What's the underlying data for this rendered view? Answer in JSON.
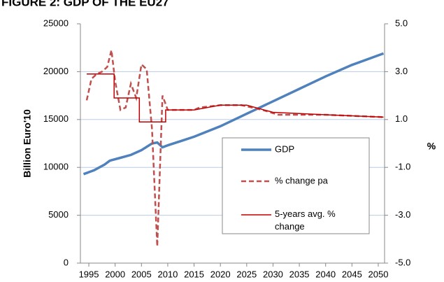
{
  "chart_data": {
    "type": "line",
    "title": "FIGURE 2: GDP OF THE EU27",
    "y_label": "Billion Euro'10",
    "y2_label": "%",
    "xlim": [
      1993.4,
      2051.2
    ],
    "xticks": [
      1995,
      2000,
      2005,
      2010,
      2015,
      2020,
      2025,
      2030,
      2035,
      2040,
      2045,
      2050
    ],
    "ylim": [
      0,
      25000
    ],
    "yticks": [
      0,
      5000,
      10000,
      15000,
      20000,
      25000
    ],
    "y2lim": [
      -5,
      5
    ],
    "y2ticks": [
      {
        "value": -5,
        "label": "-5.0"
      },
      {
        "value": -3,
        "label": "-3.0"
      },
      {
        "value": -1,
        "label": "-1.0"
      },
      {
        "value": 1,
        "label": "1.0"
      },
      {
        "value": 3,
        "label": "3.0"
      },
      {
        "value": 5,
        "label": "5.0"
      }
    ],
    "grid": true,
    "series": [
      {
        "name": "GDP",
        "color": "#4f81bd",
        "dash": "solid",
        "width": 3.5,
        "x": [
          1994,
          1996,
          1998,
          1999,
          2001,
          2003,
          2005,
          2007,
          2008,
          2009,
          2010,
          2015,
          2020,
          2025,
          2030,
          2035,
          2040,
          2045,
          2051
        ],
        "values": [
          9300,
          9700,
          10300,
          10700,
          11000,
          11300,
          11800,
          12500,
          12600,
          12100,
          12300,
          13200,
          14300,
          15600,
          16900,
          18200,
          19500,
          20700,
          21900
        ]
      },
      {
        "name": "% change pa",
        "color": "#c0504d",
        "dash": "dashed",
        "width": 2.5,
        "axis": "y2",
        "x": [
          1994.6,
          1995.5,
          1996.5,
          1997.5,
          1998.5,
          1999.3,
          2000,
          2001,
          2002,
          2003,
          2004,
          2005,
          2006,
          2007,
          2008,
          2009,
          2010,
          2015,
          2016,
          2020,
          2024,
          2028,
          2031,
          2040,
          2051
        ],
        "values": [
          1.8,
          2.7,
          2.9,
          3.0,
          3.2,
          3.9,
          2.6,
          1.4,
          1.5,
          2.5,
          1.9,
          3.3,
          3.1,
          0.6,
          -4.3,
          2.0,
          1.4,
          1.4,
          1.5,
          1.6,
          1.6,
          1.4,
          1.2,
          1.2,
          1.1
        ]
      },
      {
        "name": "5-years avg. % change",
        "color": "#c00000",
        "dash": "solid",
        "width": 1.5,
        "axis": "y2",
        "x": [
          1994.6,
          1999.8,
          1999.8,
          2004.6,
          2004.6,
          2009.6,
          2009.6,
          2015,
          2020,
          2025,
          2030,
          2040,
          2051
        ],
        "values": [
          2.9,
          2.9,
          1.9,
          1.9,
          0.9,
          0.9,
          1.4,
          1.4,
          1.6,
          1.6,
          1.3,
          1.2,
          1.1
        ]
      }
    ]
  }
}
